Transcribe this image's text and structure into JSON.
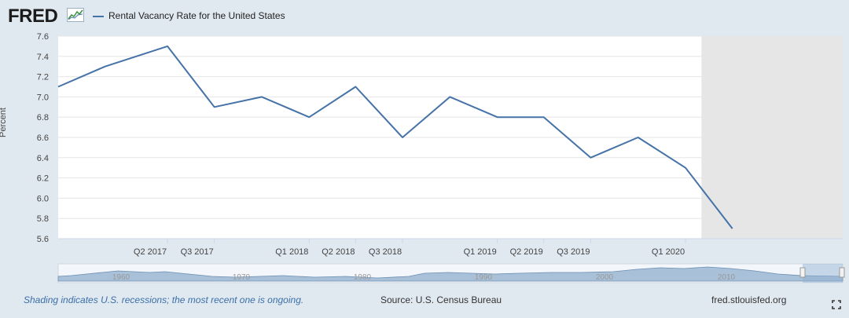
{
  "header": {
    "logo": "FRED",
    "logo_icon": "fred-line-graph-icon"
  },
  "legend": {
    "label": "Rental Vacancy Rate for the United States",
    "color": "#4572a7"
  },
  "footer": {
    "note": "Shading indicates U.S. recessions; the most recent one is ongoing.",
    "source": "Source: U.S. Census Bureau",
    "site": "fred.stlouisfed.org",
    "fullscreen_icon": "fullscreen-icon"
  },
  "navigator": {
    "labels": [
      "1960",
      "1970",
      "1980",
      "1990",
      "2000",
      "2010"
    ]
  },
  "chart_data": {
    "type": "line",
    "title": "",
    "xlabel": "",
    "ylabel": "Percent",
    "ylim": [
      5.6,
      7.6
    ],
    "yticks": [
      "7.6",
      "7.4",
      "7.2",
      "7.0",
      "6.8",
      "6.6",
      "6.4",
      "6.2",
      "6.0",
      "5.8",
      "5.6"
    ],
    "xticks": [
      "Q2 2017",
      "Q3 2017",
      "Q1 2018",
      "Q2 2018",
      "Q3 2018",
      "Q1 2019",
      "Q2 2019",
      "Q3 2019",
      "Q1 2020"
    ],
    "grid": true,
    "recession_shading": {
      "from": "2020-02",
      "to": "2020-12",
      "color": "#e6e6e6"
    },
    "series": [
      {
        "name": "Rental Vacancy Rate for the United States",
        "color": "#4572a7",
        "x": [
          "2016-09",
          "2016-12",
          "2017-04",
          "2017-07",
          "2017-10",
          "2018-01",
          "2018-04",
          "2018-07",
          "2018-10",
          "2019-01",
          "2019-04",
          "2019-07",
          "2019-10",
          "2020-01",
          "2020-04"
        ],
        "values": [
          7.1,
          7.3,
          7.5,
          6.9,
          7.0,
          6.8,
          7.1,
          6.6,
          7.0,
          6.8,
          6.8,
          6.4,
          6.6,
          6.3,
          5.7
        ]
      }
    ]
  }
}
